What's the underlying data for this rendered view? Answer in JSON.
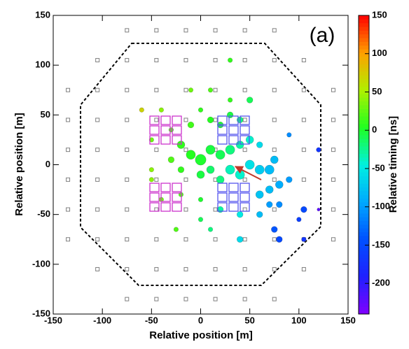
{
  "chart_data": {
    "type": "scatter",
    "annotation": "(a)",
    "xlabel": "Relative position [m]",
    "ylabel": "Relative position [m]",
    "colorbar_label": "Relative timing [ns]",
    "xlim": [
      -150,
      150
    ],
    "xticks": [
      -150,
      -100,
      -50,
      0,
      50,
      100,
      150
    ],
    "ylim": [
      -150,
      150
    ],
    "yticks": [
      -150,
      -100,
      -50,
      0,
      50,
      100,
      150
    ],
    "zlim": [
      -240,
      150
    ],
    "zticks": [
      150,
      100,
      50,
      0,
      -50,
      -100,
      -150,
      -200
    ],
    "colors": [
      "#8000ff",
      "#2020ff",
      "#0050ff",
      "#00a8ff",
      "#00f0e0",
      "#20ff20",
      "#b0f000",
      "#ffa000",
      "#ff0000"
    ],
    "series": [
      {
        "color": "#808080",
        "x": [
          -75,
          -45,
          -15,
          15,
          45,
          75,
          -105,
          -75,
          -45,
          -15,
          15,
          45,
          75,
          105,
          -135,
          -105,
          -75,
          -45,
          -15,
          15,
          45,
          75,
          105,
          135,
          -135,
          -105,
          -75,
          -45,
          -15,
          15,
          45,
          75,
          105,
          135,
          -135,
          -105,
          -75,
          -45,
          -15,
          15,
          45,
          75,
          105,
          135,
          -135,
          -105,
          -75,
          -45,
          -15,
          15,
          45,
          75,
          105,
          135,
          -135,
          -105,
          -75,
          -45,
          -15,
          15,
          45,
          75,
          105,
          135,
          -135,
          -105,
          -75,
          -45,
          -15,
          15,
          45,
          75,
          105,
          135,
          -105,
          -75,
          -45,
          -15,
          15,
          45,
          75,
          105,
          -75,
          -45,
          -15,
          15,
          45,
          75
        ],
        "y": [
          135,
          135,
          135,
          135,
          135,
          135,
          105,
          105,
          105,
          105,
          105,
          105,
          105,
          105,
          75,
          75,
          75,
          75,
          75,
          75,
          75,
          75,
          75,
          75,
          45,
          45,
          45,
          45,
          45,
          45,
          45,
          45,
          45,
          45,
          15,
          15,
          15,
          15,
          15,
          15,
          15,
          15,
          15,
          15,
          -15,
          -15,
          -15,
          -15,
          -15,
          -15,
          -15,
          -15,
          -15,
          -15,
          -45,
          -45,
          -45,
          -45,
          -45,
          -45,
          -45,
          -45,
          -45,
          -45,
          -75,
          -75,
          -75,
          -75,
          -75,
          -75,
          -75,
          -75,
          -75,
          -75,
          -105,
          -105,
          -105,
          -105,
          -105,
          -105,
          -105,
          -105,
          -135,
          -135,
          -135,
          -135,
          -135,
          -135
        ]
      },
      {
        "x": [
          -60,
          -40,
          -10,
          10,
          30,
          50,
          -50,
          -30,
          -10,
          0,
          10,
          20,
          30,
          40,
          -20,
          -10,
          0,
          10,
          20,
          30,
          40,
          50,
          60,
          -30,
          -20,
          0,
          10,
          20,
          30,
          40,
          50,
          60,
          70,
          75,
          80,
          70,
          60,
          -50,
          -40,
          -20,
          0,
          20,
          40,
          60,
          70,
          80,
          90,
          90,
          120,
          105,
          75,
          80,
          100,
          105,
          120,
          40,
          10,
          -25,
          30,
          0,
          -50
        ],
        "y": [
          55,
          55,
          75,
          75,
          65,
          65,
          25,
          35,
          40,
          55,
          45,
          40,
          50,
          45,
          20,
          10,
          5,
          15,
          10,
          15,
          20,
          25,
          20,
          5,
          -5,
          -10,
          -5,
          -15,
          -5,
          -10,
          0,
          -5,
          -5,
          5,
          -20,
          -25,
          -30,
          -15,
          -35,
          -30,
          -35,
          -45,
          -50,
          -50,
          -40,
          -40,
          -15,
          30,
          15,
          -45,
          -65,
          -75,
          -55,
          -75,
          -45,
          -75,
          -65,
          -65,
          105,
          -55,
          -5
        ],
        "z": [
          70,
          40,
          30,
          20,
          10,
          -10,
          30,
          20,
          15,
          10,
          5,
          0,
          -5,
          -20,
          10,
          5,
          0,
          -5,
          -10,
          -20,
          -30,
          -40,
          -60,
          20,
          10,
          -5,
          -15,
          -20,
          -35,
          -40,
          -55,
          -70,
          -80,
          -80,
          -90,
          -80,
          -75,
          40,
          30,
          20,
          0,
          -30,
          -50,
          -80,
          -100,
          -110,
          -100,
          -110,
          -170,
          -150,
          -140,
          -150,
          -160,
          -170,
          -220,
          -60,
          -20,
          20,
          10,
          -10,
          40
        ],
        "sizes": [
          3,
          3,
          3,
          3,
          3,
          4,
          3,
          3,
          4,
          3,
          4,
          4,
          4,
          4,
          5,
          6,
          7,
          6,
          6,
          6,
          5,
          5,
          4,
          4,
          4,
          5,
          5,
          5,
          6,
          6,
          6,
          6,
          6,
          5,
          5,
          5,
          5,
          3,
          3,
          3,
          3,
          4,
          4,
          4,
          4,
          4,
          4,
          3,
          3,
          4,
          4,
          4,
          3,
          3,
          2,
          4,
          3,
          3,
          3,
          3,
          3
        ]
      }
    ]
  }
}
